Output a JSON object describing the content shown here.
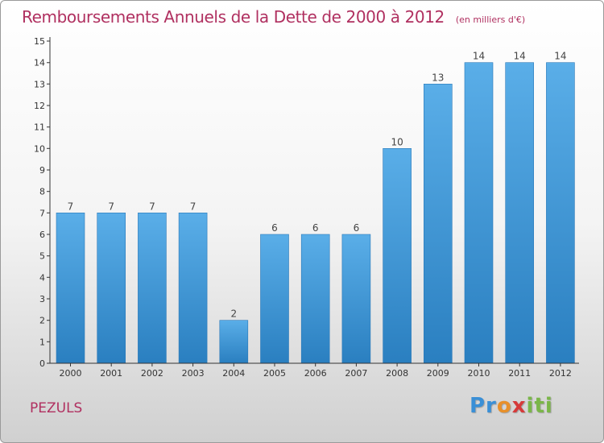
{
  "title": {
    "main": "Remboursements Annuels de la Dette de 2000 à 2012",
    "unit": "(en milliers d'€)"
  },
  "commune": "PEZULS",
  "logo": {
    "text": "Proxiti"
  },
  "colors": {
    "title": "#b03060",
    "bar_light": "#5aaee8",
    "bar_dark": "#2a7fc0",
    "axis": "#333333"
  },
  "chart_data": {
    "type": "bar",
    "categories": [
      "2000",
      "2001",
      "2002",
      "2003",
      "2004",
      "2005",
      "2006",
      "2007",
      "2008",
      "2009",
      "2010",
      "2011",
      "2012"
    ],
    "values": [
      7,
      7,
      7,
      7,
      2,
      6,
      6,
      6,
      10,
      13,
      14,
      14,
      14
    ],
    "data_labels": [
      "7",
      "7",
      "7",
      "7",
      "2",
      "6",
      "6",
      "6",
      "10",
      "13",
      "14",
      "14",
      "14"
    ],
    "title": "Remboursements Annuels de la Dette de 2000 à 2012",
    "xlabel": "",
    "ylabel": "",
    "ylim": [
      0,
      15
    ],
    "yticks": [
      "0",
      "1",
      "2",
      "3",
      "4",
      "5",
      "6",
      "7",
      "8",
      "9",
      "10",
      "11",
      "12",
      "13",
      "14",
      "15"
    ],
    "grid": false,
    "legend": "none"
  }
}
